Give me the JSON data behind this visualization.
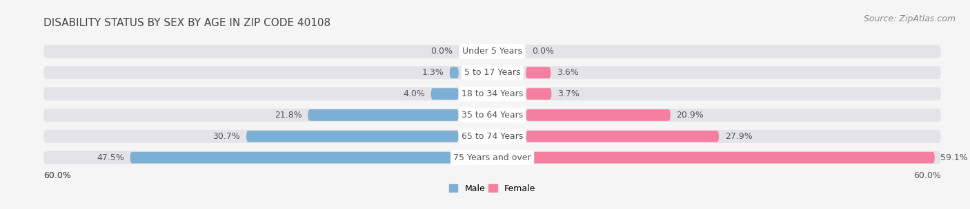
{
  "title": "DISABILITY STATUS BY SEX BY AGE IN ZIP CODE 40108",
  "source": "Source: ZipAtlas.com",
  "categories": [
    "Under 5 Years",
    "5 to 17 Years",
    "18 to 34 Years",
    "35 to 64 Years",
    "65 to 74 Years",
    "75 Years and over"
  ],
  "male_values": [
    0.0,
    1.3,
    4.0,
    21.8,
    30.7,
    47.5
  ],
  "female_values": [
    0.0,
    3.6,
    3.7,
    20.9,
    27.9,
    59.1
  ],
  "male_color": "#7bafd4",
  "female_color": "#f47fa0",
  "bar_bg_color": "#e4e4e8",
  "max_value": 60.0,
  "bg_color": "#f5f5f5",
  "title_color": "#444444",
  "label_color": "#555555",
  "category_color": "#555555",
  "source_color": "#888888",
  "title_fontsize": 11,
  "label_fontsize": 9,
  "cat_fontsize": 9,
  "source_fontsize": 9
}
